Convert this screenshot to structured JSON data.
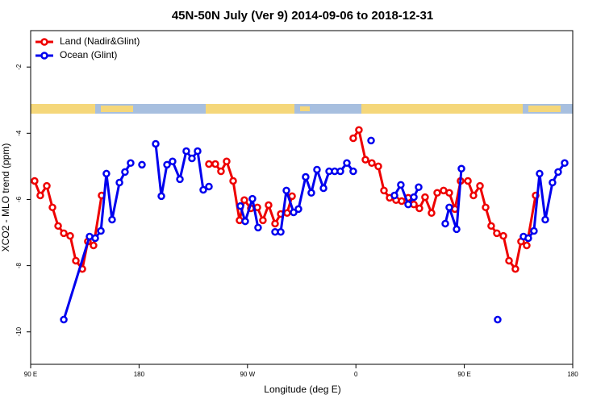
{
  "chart_data": {
    "type": "line",
    "title": "45N-50N July (Ver 9)   2014-09-06 to 2018-12-31",
    "x_label": "Longitude (deg E)",
    "y_label": "XCO2 - MLO trend (ppm)",
    "xlim": [
      90,
      540
    ],
    "ylim": [
      -10.98,
      -0.9
    ],
    "xticks": [
      {
        "value": 90,
        "label": "90 E"
      },
      {
        "value": 180,
        "label": "180"
      },
      {
        "value": 270,
        "label": "90 W"
      },
      {
        "value": 360,
        "label": "0"
      },
      {
        "value": 450,
        "label": "90 E"
      },
      {
        "value": 540,
        "label": "180"
      }
    ],
    "yticks": [
      -2,
      -4,
      -6,
      -8,
      -10
    ],
    "legend": "topleft",
    "series": [
      {
        "name": "Land (Nadir&Glint)",
        "color": "#ee0000",
        "x": [
          93.3,
          98.0,
          103.4,
          108.1,
          112.8,
          117.5,
          122.8,
          127.5,
          132.9,
          137.5,
          142.2,
          148.9,
          null,
          238.0,
          243.3,
          248.0,
          252.7,
          258.1,
          263.4,
          267.4,
          272.8,
          278.2,
          282.8,
          287.5,
          292.9,
          297.6,
          302.9,
          307.0,
          null,
          357.8,
          362.5,
          367.9,
          373.2,
          378.6,
          383.3,
          388.0,
          393.3,
          398.0,
          403.4,
          408.1,
          412.7,
          417.4,
          422.8,
          427.5,
          432.8,
          437.5,
          442.2,
          446.9,
          453.0,
          457.6,
          463.0,
          467.7,
          472.3,
          477.0,
          482.4,
          487.1,
          492.4,
          497.1,
          501.8,
          509.2
        ],
        "values": [
          -5.44,
          -5.88,
          -5.59,
          -6.24,
          -6.8,
          -7.02,
          -7.1,
          -7.85,
          -8.1,
          -7.27,
          -7.39,
          -5.88,
          null,
          -4.93,
          -4.93,
          -5.15,
          -4.85,
          -5.44,
          -6.63,
          -6.02,
          -6.27,
          -6.24,
          -6.63,
          -6.17,
          -6.73,
          -6.44,
          -6.41,
          -5.9,
          null,
          -4.15,
          -3.9,
          -4.8,
          -4.9,
          -5.0,
          -5.73,
          -5.95,
          -6.02,
          -6.05,
          -5.95,
          -6.15,
          -6.27,
          -5.93,
          -6.41,
          -5.8,
          -5.73,
          -5.8,
          -6.29,
          -5.44,
          -5.44,
          -5.88,
          -5.59,
          -6.24,
          -6.8,
          -7.02,
          -7.1,
          -7.85,
          -8.1,
          -7.27,
          -7.39,
          -5.88
        ]
      },
      {
        "name": "Ocean (Glint)",
        "color": "#0000ee",
        "x": [
          117.5,
          138.9,
          143.6,
          148.3,
          152.9,
          157.6,
          163.7,
          168.3,
          173.0,
          null,
          182.4,
          null,
          193.8,
          198.5,
          203.2,
          207.8,
          213.9,
          219.2,
          223.9,
          228.6,
          233.3,
          238.0,
          null,
          264.1,
          268.1,
          274.1,
          278.8,
          null,
          292.9,
          297.6,
          302.3,
          308.3,
          312.3,
          318.3,
          323.0,
          327.7,
          333.1,
          337.8,
          342.4,
          347.1,
          352.5,
          357.8,
          null,
          372.6,
          null,
          392.0,
          397.3,
          403.4,
          408.1,
          412.1,
          null,
          434.2,
          437.5,
          443.6,
          447.6,
          null,
          477.7,
          null,
          499.1,
          503.1,
          507.8,
          512.5,
          517.2,
          523.2,
          527.9,
          533.3
        ],
        "values": [
          -9.63,
          -7.12,
          -7.17,
          -6.95,
          -5.22,
          -6.61,
          -5.49,
          -5.17,
          -4.9,
          null,
          -4.95,
          null,
          -4.32,
          -5.9,
          -4.95,
          -4.85,
          -5.39,
          -4.54,
          -4.76,
          -4.54,
          -5.71,
          -5.61,
          null,
          -6.2,
          -6.66,
          -5.98,
          -6.85,
          null,
          -6.98,
          -6.98,
          -5.73,
          -6.39,
          -6.29,
          -5.32,
          -5.8,
          -5.1,
          -5.66,
          -5.15,
          -5.15,
          -5.15,
          -4.9,
          -5.15,
          null,
          -4.22,
          null,
          -5.88,
          -5.56,
          -6.15,
          -5.93,
          -5.63,
          null,
          -6.73,
          -6.24,
          -6.9,
          -5.07,
          null,
          -9.63,
          null,
          -7.12,
          -7.17,
          -6.95,
          -5.22,
          -6.61,
          -5.49,
          -5.17,
          -4.9
        ]
      }
    ]
  }
}
